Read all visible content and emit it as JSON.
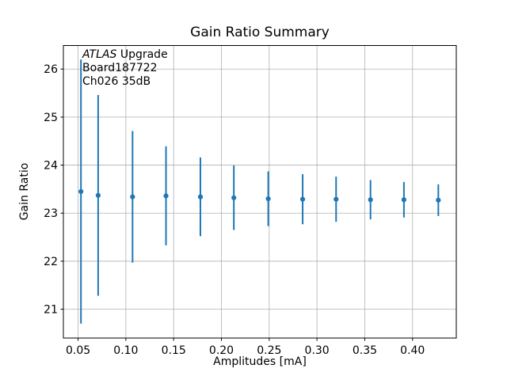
{
  "chart": {
    "title": "Gain Ratio Summary",
    "xlabel": "Amplitudes [mA]",
    "ylabel": "Gain Ratio",
    "annotation": {
      "line1_italic": "ATLAS",
      "line1_rest": " Upgrade",
      "line2": "Board187722",
      "line3": "Ch026 35dB"
    }
  },
  "chart_data": {
    "type": "scatter",
    "title": "Gain Ratio Summary",
    "xlabel": "Amplitudes [mA]",
    "ylabel": "Gain Ratio",
    "annotation_lines": [
      "ATLAS Upgrade",
      "Board187722",
      "Ch026 35dB"
    ],
    "x": [
      0.053,
      0.071,
      0.107,
      0.142,
      0.178,
      0.213,
      0.249,
      0.285,
      0.32,
      0.356,
      0.391,
      0.427
    ],
    "y": [
      23.45,
      23.37,
      23.34,
      23.36,
      23.34,
      23.32,
      23.3,
      23.29,
      23.29,
      23.28,
      23.28,
      23.27
    ],
    "yerr": [
      2.75,
      2.09,
      1.37,
      1.03,
      0.82,
      0.67,
      0.57,
      0.52,
      0.47,
      0.41,
      0.37,
      0.33
    ],
    "xticks": [
      0.05,
      0.1,
      0.15,
      0.2,
      0.25,
      0.3,
      0.35,
      0.4
    ],
    "xtick_labels": [
      "0.05",
      "0.10",
      "0.15",
      "0.20",
      "0.25",
      "0.30",
      "0.35",
      "0.40"
    ],
    "yticks": [
      21,
      22,
      23,
      24,
      25,
      26
    ],
    "ytick_labels": [
      "21",
      "22",
      "23",
      "24",
      "25",
      "26"
    ],
    "xlim": [
      0.0346,
      0.4458
    ],
    "ylim": [
      20.4,
      26.49
    ],
    "grid": true,
    "legend": null,
    "marker_color": "#1f77b4",
    "grid_color": "#b0b0b0",
    "spine_color": "#000000",
    "background_color": "#ffffff"
  }
}
